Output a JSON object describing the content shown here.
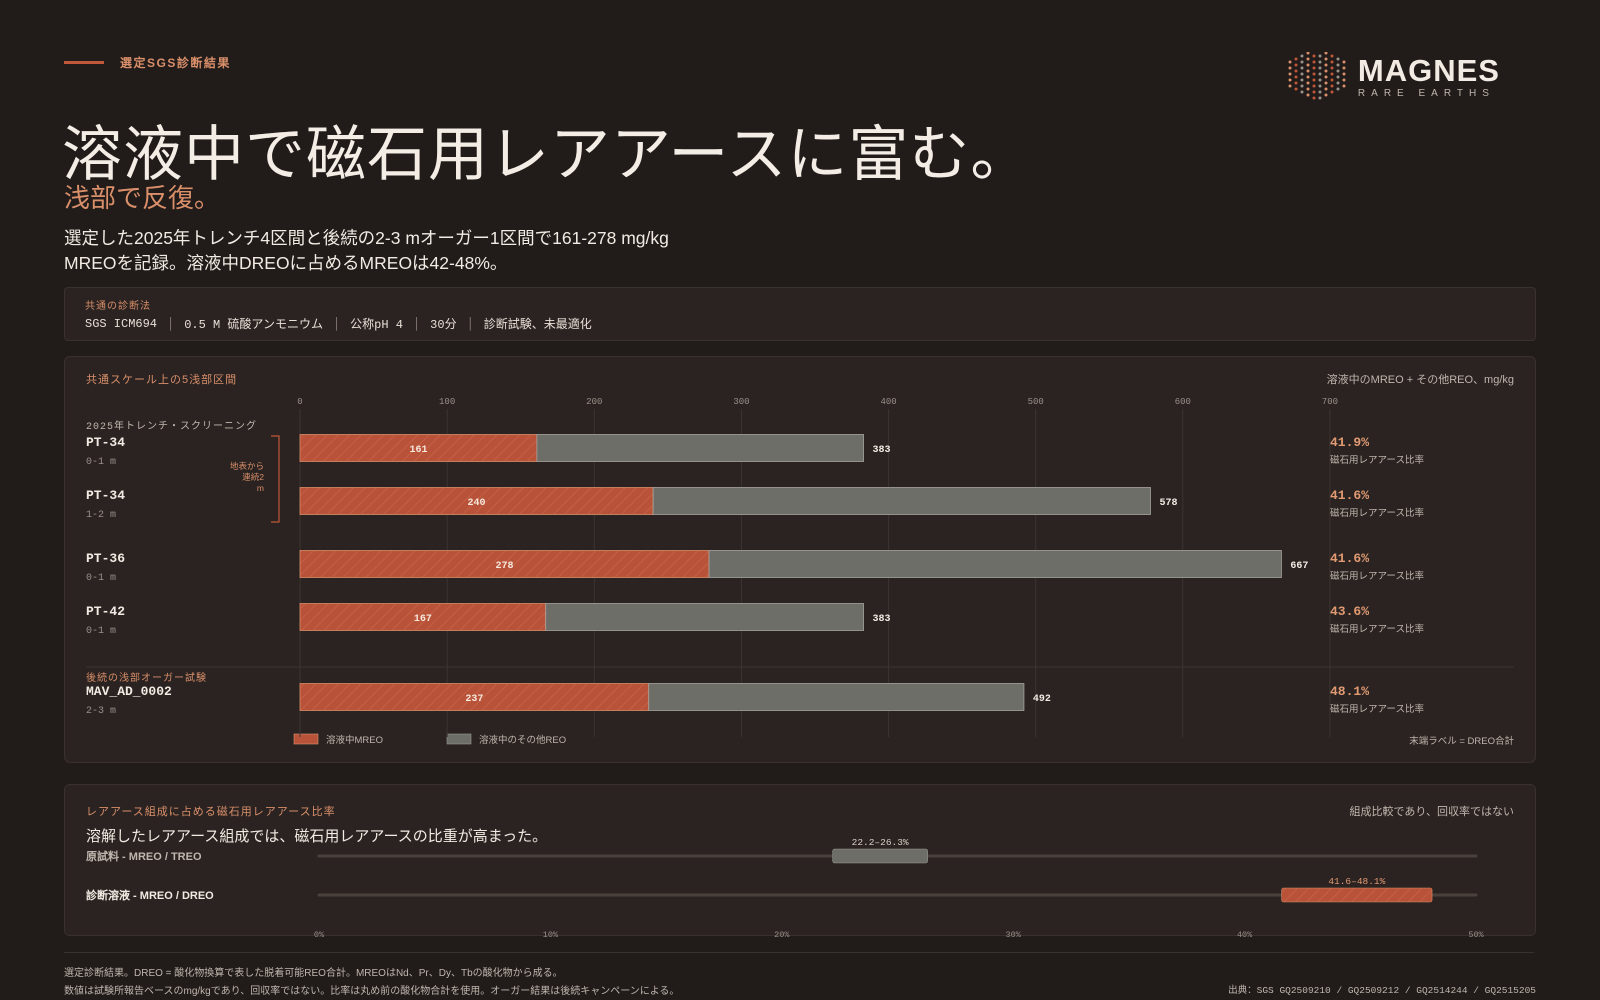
{
  "eyebrow": "選定SGS診断結果",
  "logo": {
    "name": "MAGNES",
    "sub": "RARE EARTHS"
  },
  "title": "溶液中で磁石用レアアースに富む。",
  "subtitle": "浅部で反復。",
  "lede": "選定した2025年トレンチ4区間と後続の2-3 mオーガー1区間で161-278 mg/kg MREOを記録。溶液中DREOに占めるMREOは42-48%。",
  "method": {
    "label": "共通の診断法",
    "items": [
      "SGS ICM694",
      "0.5 M 硫酸アンモニウム",
      "公称pH 4",
      "30分",
      "診断試験、未最適化"
    ]
  },
  "chart_panel": {
    "title": "共通スケール上の5浅部区間",
    "right_note": "溶液中のMREO + その他REO、mg/kg",
    "group1_label": "2025年トレンチ・スクリーニング",
    "group2_label": "後続の浅部オーガー試験",
    "bracket_label": "地表から連続2 m",
    "legend_mreo": "溶液中MREO",
    "legend_other": "溶液中のその他REO",
    "end_note": "末端ラベル = DREO合計",
    "ratio_label": "磁石用レアアース比率"
  },
  "chart_data": [
    {
      "type": "bar",
      "stacked": true,
      "orientation": "horizontal",
      "title": "共通スケール上の5浅部区間",
      "xlabel": "溶液中のMREO + その他REO、mg/kg",
      "xlim": [
        0,
        700
      ],
      "xticks": [
        0,
        100,
        200,
        300,
        400,
        500,
        600,
        700
      ],
      "categories": [
        "PT-34",
        "PT-34",
        "PT-36",
        "PT-42",
        "MAV_AD_0002"
      ],
      "depths": [
        "0-1 m",
        "1-2 m",
        "0-1 m",
        "0-1 m",
        "2-3 m"
      ],
      "series": [
        {
          "name": "溶液中MREO",
          "values": [
            161,
            240,
            278,
            167,
            237
          ],
          "color": "#b8533a"
        },
        {
          "name": "溶液中のその他REO",
          "values": [
            222,
            338,
            389,
            216,
            255
          ],
          "color": "#6d6e68"
        }
      ],
      "totals": [
        383,
        578,
        667,
        383,
        492
      ],
      "ratios": [
        "41.9%",
        "41.6%",
        "41.6%",
        "43.6%",
        "48.1%"
      ]
    },
    {
      "type": "range",
      "title": "レアアース組成に占める磁石用レアアース比率",
      "xlim": [
        0,
        50
      ],
      "xticks": [
        "0%",
        "10%",
        "20%",
        "30%",
        "40%",
        "50%"
      ],
      "rows": [
        {
          "label": "原試料 - MREO / TREO",
          "range": [
            22.2,
            26.3
          ],
          "range_label": "22.2–26.3%",
          "color": "#6d6e68"
        },
        {
          "label": "診断溶液 - MREO / DREO",
          "range": [
            41.6,
            48.1
          ],
          "range_label": "41.6–48.1%",
          "color": "#b8533a"
        }
      ]
    }
  ],
  "composition": {
    "title": "レアアース組成に占める磁石用レアアース比率",
    "right_note": "組成比較であり、回収率ではない",
    "headline": "溶解したレアアース組成では、磁石用レアアースの比重が高まった。"
  },
  "footer": {
    "line1": "選定診断結果。DREO = 酸化物換算で表した脱着可能REO合計。MREOはNd、Pr、Dy、Tbの酸化物から成る。",
    "line2": "数値は試験所報告ベースのmg/kgであり、回収率ではない。比率は丸め前の酸化物合計を使用。オーガー結果は後続キャンペーンによる。",
    "source": "出典：SGS GQ2509210 / GQ2509212 / GQ2514244 / GQ2515205"
  }
}
